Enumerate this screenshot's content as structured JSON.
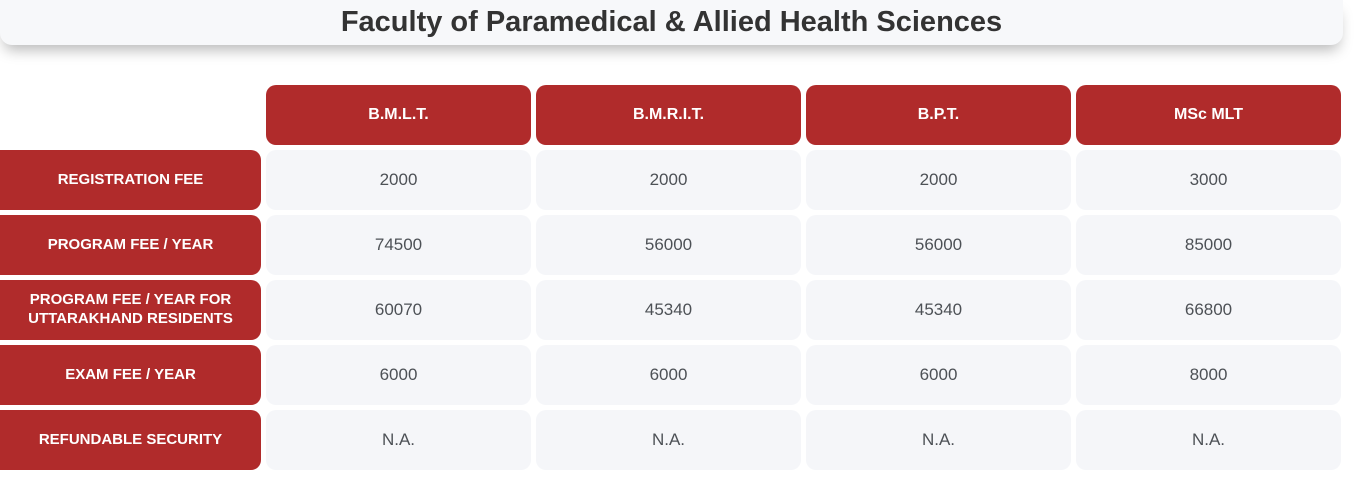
{
  "title_bar": {
    "title": "Faculty of Paramedical & Allied Health Sciences"
  },
  "colors": {
    "accent_red": "#b02b2b",
    "title_bar_background": "#f7f8fa",
    "cell_background": "#f5f6f9",
    "title_text": "#333333",
    "cell_text": "#4d5156",
    "header_text": "#ffffff"
  },
  "table": {
    "column_headers": [
      "B.M.L.T.",
      "B.M.R.I.T.",
      "B.P.T.",
      "MSc MLT"
    ],
    "rows": [
      {
        "label": "REGISTRATION FEE",
        "values": [
          "2000",
          "2000",
          "2000",
          "3000"
        ]
      },
      {
        "label": "PROGRAM FEE / YEAR",
        "values": [
          "74500",
          "56000",
          "56000",
          "85000"
        ]
      },
      {
        "label": "PROGRAM FEE / YEAR FOR UTTARAKHAND RESIDENTS",
        "values": [
          "60070",
          "45340",
          "45340",
          "66800"
        ]
      },
      {
        "label": "EXAM FEE / YEAR",
        "values": [
          "6000",
          "6000",
          "6000",
          "8000"
        ]
      },
      {
        "label": "REFUNDABLE SECURITY",
        "values": [
          "N.A.",
          "N.A.",
          "N.A.",
          "N.A."
        ]
      }
    ]
  }
}
